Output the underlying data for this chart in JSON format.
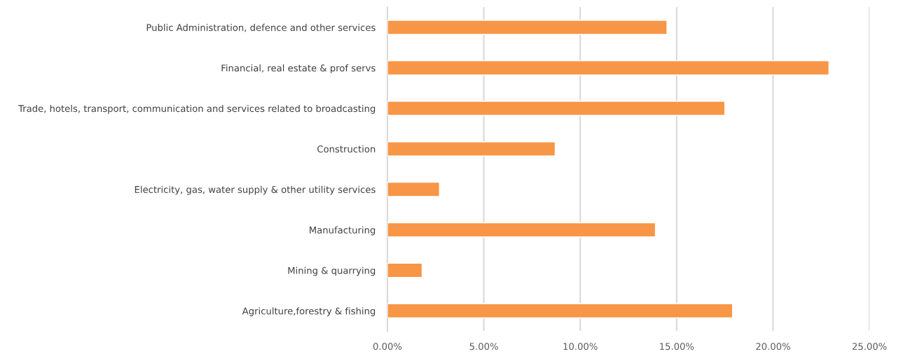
{
  "chart_data": {
    "type": "bar",
    "orientation": "horizontal",
    "categories": [
      "Public Administration, defence and other services",
      "Financial, real estate & prof servs",
      "Trade, hotels, transport, communication and services related to broadcasting",
      "Construction",
      "Electricity, gas, water supply & other utility services",
      "Manufacturing",
      "Mining & quarrying",
      "Agriculture,forestry & fishing"
    ],
    "values": [
      14.5,
      22.9,
      17.5,
      8.7,
      2.7,
      13.9,
      1.8,
      17.9
    ],
    "color": "#f79646",
    "xlim": [
      0,
      25
    ],
    "xticks": [
      {
        "value": 0,
        "label": "0.00%"
      },
      {
        "value": 5,
        "label": "5.00%"
      },
      {
        "value": 10,
        "label": "10.00%"
      },
      {
        "value": 15,
        "label": "15.00%"
      },
      {
        "value": 20,
        "label": "20.00%"
      },
      {
        "value": 25,
        "label": "25.00%"
      }
    ],
    "grid": "x",
    "legend": false
  }
}
